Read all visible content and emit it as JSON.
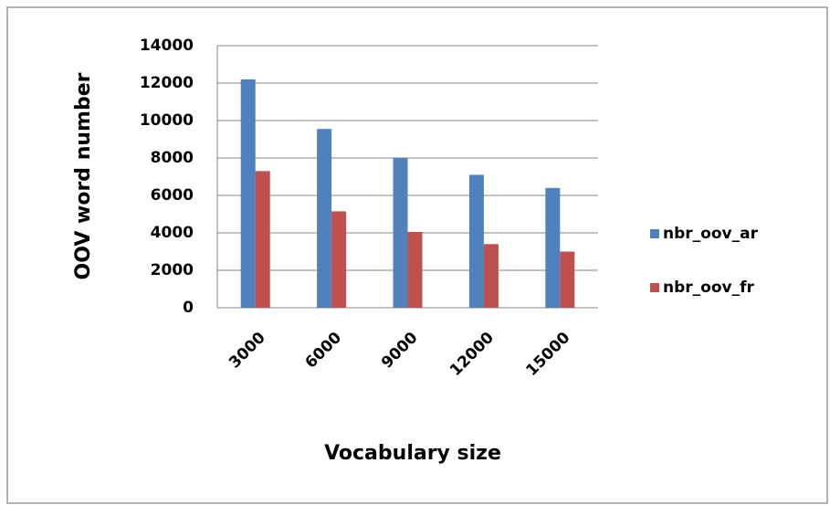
{
  "chart_data": {
    "type": "bar",
    "x_label": "Vocabulary size",
    "y_label": "OOV word number",
    "categories": [
      "3000",
      "6000",
      "9000",
      "12000",
      "15000"
    ],
    "series": [
      {
        "name": "nbr_oov_ar",
        "color": "#4f81bd",
        "values": [
          12200,
          9550,
          8000,
          7100,
          6400
        ]
      },
      {
        "name": "nbr_oov_fr",
        "color": "#c0504d",
        "values": [
          7300,
          5150,
          4050,
          3400,
          3000
        ]
      }
    ],
    "ylim": [
      0,
      14000
    ],
    "yticks": [
      0,
      2000,
      4000,
      6000,
      8000,
      10000,
      12000,
      14000
    ],
    "grid": true,
    "legend": "right"
  }
}
